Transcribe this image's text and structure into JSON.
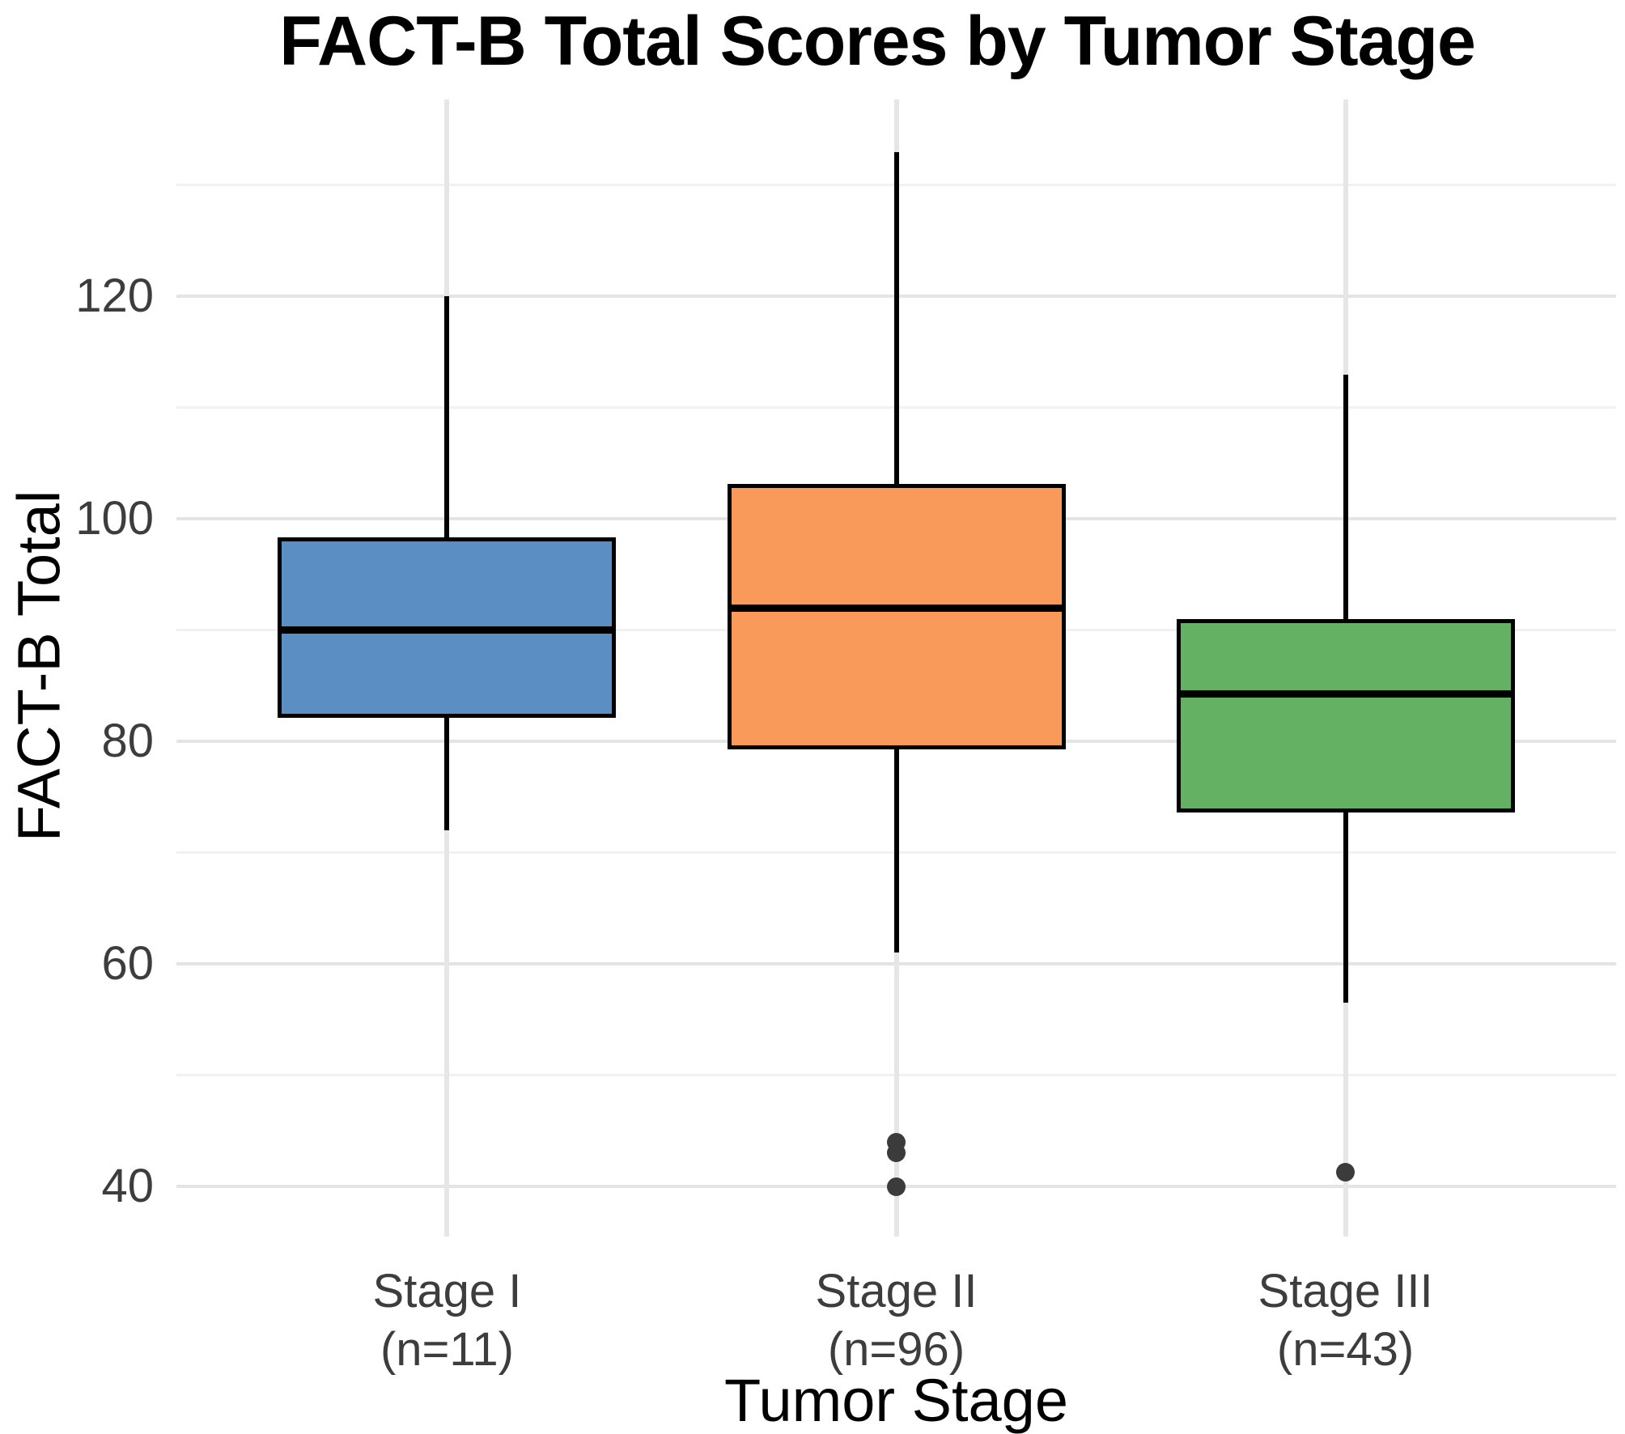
{
  "chart_data": {
    "type": "boxplot",
    "title": "FACT-B Total Scores by Tumor Stage",
    "xlabel": "Tumor Stage",
    "ylabel": "FACT-B Total",
    "ylim": [
      35.5,
      137.7
    ],
    "yticks": [
      40,
      60,
      80,
      100,
      120
    ],
    "minor_gridlines": [
      50,
      70,
      90,
      110,
      130
    ],
    "grid": "horizontal major+minor gridlines, one vertical gridline per category",
    "legend": "none",
    "groups": [
      {
        "label": "Stage I",
        "sublabel": "(n=11)",
        "n": 11,
        "fill": "#5b8ec2",
        "whisker_low": 72,
        "q1": 82.3,
        "median": 90,
        "q3": 98.2,
        "whisker_high": 120,
        "outliers": []
      },
      {
        "label": "Stage II",
        "sublabel": "(n=96)",
        "n": 96,
        "fill": "#f9995a",
        "whisker_low": 61,
        "q1": 79.5,
        "median": 92,
        "q3": 103,
        "whisker_high": 133,
        "outliers": [
          44,
          43,
          40
        ]
      },
      {
        "label": "Stage III",
        "sublabel": "(n=43)",
        "n": 43,
        "fill": "#64b164",
        "whisker_low": 56.5,
        "q1": 73.8,
        "median": 84.3,
        "q3": 90.8,
        "whisker_high": 113,
        "outliers": [
          41.3
        ]
      }
    ]
  },
  "colors": {
    "background": "#ffffff",
    "box_outline": "#000000",
    "median_line": "#000000",
    "whisker": "#000000",
    "outlier_dot": "#3b3b3b",
    "grid_major": "#e4e4e4",
    "grid_minor": "#f1f1f1",
    "grid_vertical": "#e6e6e6",
    "tick_text": "#3d3d3d",
    "axis_text": "#000000",
    "title_text": "#000000"
  }
}
